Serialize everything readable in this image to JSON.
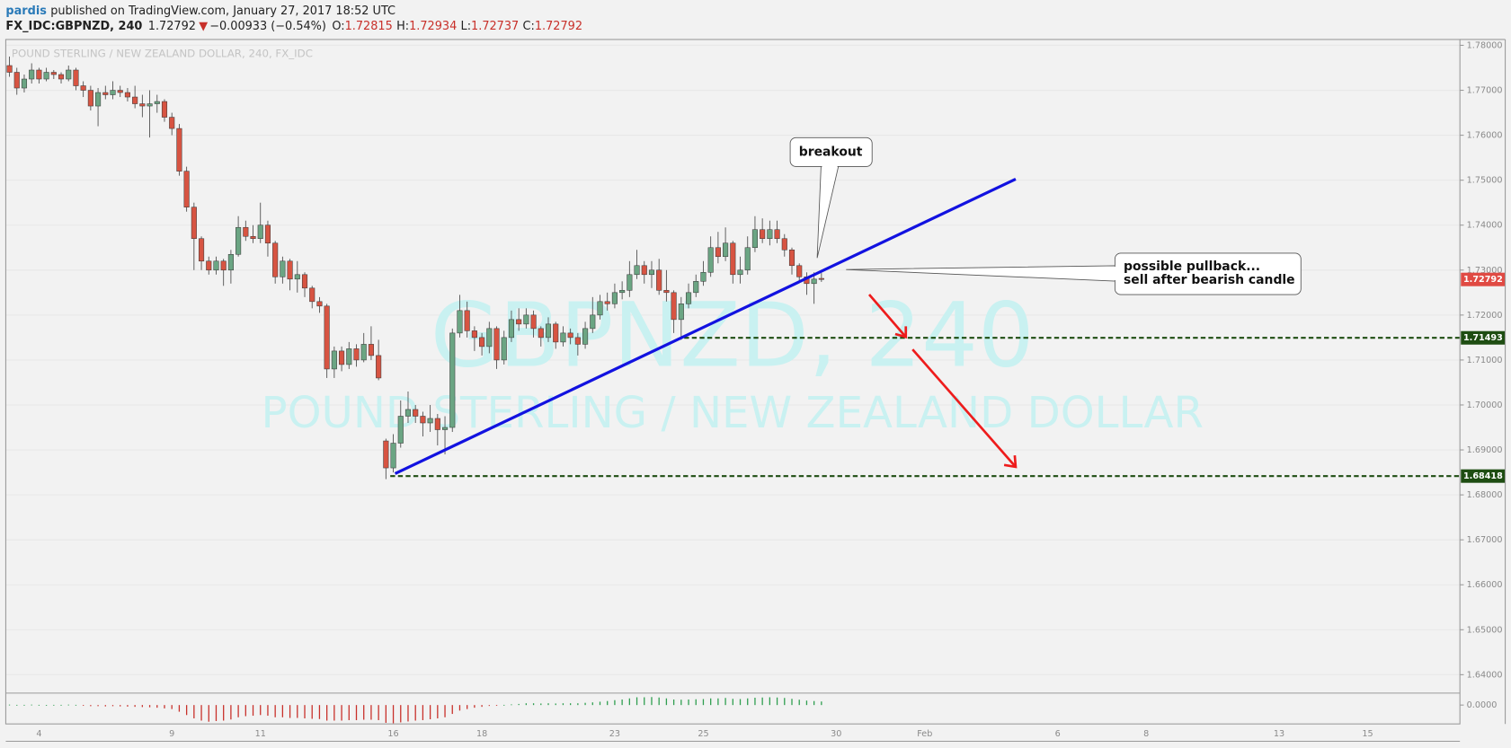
{
  "header": {
    "author": "pardis",
    "published": "published on TradingView.com, January 27, 2017 18:52 UTC",
    "symbol": "FX_IDC:GBPNZD, 240",
    "direction": "▼",
    "change": "−0.00933 (−0.54%)",
    "ohlc_labels": [
      "O:",
      "H:",
      "L:",
      "C:"
    ]
  },
  "chart_data": {
    "type": "candlestick",
    "legend_text": "POUND STERLING / NEW ZEALAND DOLLAR, 240, FX_IDC",
    "watermark": [
      "GBPNZD, 240",
      "POUND STERLING / NEW ZEALAND DOLLAR"
    ],
    "annotations": [
      "breakout",
      "possible pullback...",
      "sell after bearish candle"
    ],
    "up_color": "#6ba583",
    "down_color": "#d75442",
    "grid": true,
    "ylim": [
      1.6359,
      1.7813
    ],
    "yticks": [
      {
        "value": 1.78,
        "label": "1.78000"
      },
      {
        "value": 1.77,
        "label": "1.77000"
      },
      {
        "value": 1.76,
        "label": "1.76000"
      },
      {
        "value": 1.75,
        "label": "1.75000"
      },
      {
        "value": 1.74,
        "label": "1.74000"
      },
      {
        "value": 1.73,
        "label": "1.73000"
      },
      {
        "value": 1.72,
        "label": "1.72000"
      },
      {
        "value": 1.71,
        "label": "1.71000"
      },
      {
        "value": 1.7,
        "label": "1.70000"
      },
      {
        "value": 1.69,
        "label": "1.69000"
      },
      {
        "value": 1.68,
        "label": "1.68000"
      },
      {
        "value": 1.67,
        "label": "1.67000"
      },
      {
        "value": 1.66,
        "label": "1.66000"
      },
      {
        "value": 1.65,
        "label": "1.65000"
      },
      {
        "value": 1.64,
        "label": "1.64000"
      }
    ],
    "levels": [
      1.71493,
      1.68418
    ],
    "level_color": "#1e4d12",
    "last_color": "#e04a43",
    "categories": [
      null,
      null,
      null,
      null,
      "4",
      null,
      null,
      null,
      null,
      null,
      null,
      null,
      null,
      null,
      null,
      null,
      null,
      null,
      null,
      null,
      null,
      null,
      "9",
      null,
      null,
      null,
      null,
      null,
      null,
      null,
      null,
      null,
      null,
      null,
      "11",
      null,
      null,
      null,
      null,
      null,
      null,
      null,
      null,
      null,
      null,
      null,
      null,
      null,
      null,
      null,
      null,
      null,
      "16",
      null,
      null,
      null,
      null,
      null,
      null,
      null,
      null,
      null,
      null,
      null,
      "18",
      null,
      null,
      null,
      null,
      null,
      null,
      null,
      null,
      null,
      null,
      null,
      null,
      null,
      null,
      null,
      null,
      null,
      "23",
      null,
      null,
      null,
      null,
      null,
      null,
      null,
      null,
      null,
      null,
      null,
      "25",
      null,
      null,
      null,
      null,
      null,
      null,
      null,
      null,
      null,
      null,
      null,
      null,
      null,
      null,
      null,
      null,
      null,
      "30",
      null,
      null,
      null,
      null,
      null,
      null,
      null,
      null,
      null,
      null,
      null,
      "Feb",
      null,
      null,
      null,
      null,
      null,
      null,
      null,
      null,
      null,
      null,
      null,
      null,
      null,
      null,
      null,
      null,
      null,
      "6",
      null,
      null,
      null,
      null,
      null,
      null,
      null,
      null,
      null,
      null,
      null,
      "8",
      null,
      null,
      null,
      null,
      null,
      null,
      null,
      null,
      null,
      null,
      null,
      null,
      null,
      null,
      null,
      null,
      null,
      "13",
      null,
      null,
      null,
      null,
      null,
      null,
      null,
      null,
      null,
      null,
      null,
      "15",
      null,
      null,
      null,
      null,
      null,
      null,
      null,
      null,
      null,
      null,
      null,
      null
    ],
    "open": [
      1.7755,
      1.774,
      1.7705,
      1.7725,
      1.7745,
      1.7725,
      1.774,
      1.7735,
      1.7725,
      1.7745,
      1.771,
      1.77,
      1.7665,
      1.7695,
      1.769,
      1.77,
      1.7695,
      1.7685,
      1.767,
      1.7665,
      1.767,
      1.7675,
      1.764,
      1.7615,
      1.752,
      1.744,
      1.737,
      1.732,
      1.73,
      1.732,
      1.73,
      1.7335,
      1.7395,
      1.7375,
      1.737,
      1.74,
      1.736,
      1.7285,
      1.732,
      1.728,
      1.729,
      1.726,
      1.723,
      1.722,
      1.708,
      1.712,
      1.709,
      1.7125,
      1.71,
      1.7135,
      1.711,
      1.692,
      1.686,
      1.6915,
      1.6975,
      1.699,
      1.6975,
      1.696,
      1.697,
      1.6945,
      1.695,
      1.716,
      1.721,
      1.7165,
      1.715,
      1.713,
      1.717,
      1.71,
      1.715,
      1.719,
      1.718,
      1.72,
      1.717,
      1.715,
      1.718,
      1.714,
      1.716,
      1.715,
      1.7135,
      1.717,
      1.72,
      1.723,
      1.7225,
      1.725,
      1.7255,
      1.729,
      1.731,
      1.729,
      1.73,
      1.7255,
      1.725,
      1.719,
      1.7225,
      1.725,
      1.7275,
      1.7295,
      1.735,
      1.733,
      1.736,
      1.729,
      1.73,
      1.735,
      1.739,
      1.737,
      1.739,
      1.737,
      1.7345,
      1.731,
      1.7285,
      1.727,
      1.72815,
      null,
      null,
      null,
      null,
      null,
      null,
      null,
      null,
      null,
      null,
      null,
      null,
      null,
      null,
      null,
      null,
      null,
      null,
      null,
      null,
      null,
      null,
      null,
      null,
      null,
      null,
      null,
      null,
      null,
      null,
      null,
      null,
      null,
      null,
      null,
      null,
      null,
      null,
      null,
      null,
      null,
      null,
      null,
      null,
      null,
      null,
      null,
      null,
      null,
      null,
      null,
      null,
      null,
      null,
      null,
      null,
      null,
      null,
      null,
      null,
      null,
      null,
      null,
      null,
      null,
      null,
      null,
      null,
      null,
      null,
      null,
      null,
      null,
      null,
      null,
      null,
      null,
      null,
      null,
      null,
      null,
      null,
      null,
      null,
      null,
      null
    ],
    "high": [
      1.7775,
      1.775,
      1.7735,
      1.776,
      1.775,
      1.775,
      1.7745,
      1.774,
      1.7755,
      1.775,
      1.772,
      1.771,
      1.7705,
      1.771,
      1.772,
      1.771,
      1.7705,
      1.771,
      1.769,
      1.77,
      1.769,
      1.768,
      1.765,
      1.7625,
      1.753,
      1.745,
      1.7375,
      1.733,
      1.733,
      1.7325,
      1.7345,
      1.742,
      1.741,
      1.74,
      1.745,
      1.741,
      1.7365,
      1.733,
      1.7325,
      1.732,
      1.7295,
      1.7265,
      1.724,
      1.7225,
      1.713,
      1.713,
      1.714,
      1.7135,
      1.716,
      1.7175,
      1.7145,
      1.6925,
      1.6935,
      1.701,
      1.703,
      1.7,
      1.6985,
      1.7,
      1.698,
      1.6975,
      1.717,
      1.7245,
      1.723,
      1.7175,
      1.716,
      1.7185,
      1.7175,
      1.7165,
      1.721,
      1.7215,
      1.7215,
      1.721,
      1.7175,
      1.7195,
      1.7185,
      1.7175,
      1.717,
      1.716,
      1.7185,
      1.724,
      1.7245,
      1.725,
      1.727,
      1.7275,
      1.732,
      1.7345,
      1.732,
      1.732,
      1.7325,
      1.73,
      1.7255,
      1.724,
      1.727,
      1.729,
      1.732,
      1.7375,
      1.7385,
      1.7395,
      1.7365,
      1.733,
      1.7375,
      1.742,
      1.7415,
      1.741,
      1.741,
      1.738,
      1.735,
      1.7315,
      1.7295,
      1.7295,
      1.72934,
      null,
      null,
      null,
      null,
      null,
      null,
      null,
      null,
      null,
      null,
      null,
      null,
      null,
      null,
      null,
      null,
      null,
      null,
      null,
      null,
      null,
      null,
      null,
      null,
      null,
      null,
      null,
      null,
      null,
      null,
      null,
      null,
      null,
      null,
      null,
      null,
      null,
      null,
      null,
      null,
      null,
      null,
      null,
      null,
      null,
      null,
      null,
      null,
      null,
      null,
      null,
      null,
      null,
      null,
      null,
      null,
      null,
      null,
      null,
      null,
      null,
      null,
      null,
      null,
      null,
      null,
      null,
      null,
      null,
      null,
      null,
      null,
      null,
      null,
      null,
      null,
      null,
      null,
      null,
      null,
      null,
      null,
      null,
      null,
      null,
      null
    ],
    "low": [
      1.773,
      1.769,
      1.7695,
      1.7715,
      1.7715,
      1.772,
      1.7725,
      1.7715,
      1.772,
      1.77,
      1.7685,
      1.7655,
      1.762,
      1.768,
      1.768,
      1.7685,
      1.7675,
      1.766,
      1.764,
      1.7595,
      1.765,
      1.763,
      1.76,
      1.751,
      1.743,
      1.73,
      1.73,
      1.729,
      1.729,
      1.7265,
      1.727,
      1.733,
      1.7365,
      1.736,
      1.736,
      1.733,
      1.727,
      1.727,
      1.7255,
      1.725,
      1.724,
      1.7215,
      1.7205,
      1.706,
      1.706,
      1.7075,
      1.708,
      1.7085,
      1.7095,
      1.71,
      1.7055,
      1.6835,
      1.685,
      1.6905,
      1.696,
      1.696,
      1.693,
      1.694,
      1.691,
      1.689,
      1.694,
      1.715,
      1.715,
      1.712,
      1.711,
      1.7115,
      1.708,
      1.709,
      1.714,
      1.7165,
      1.717,
      1.715,
      1.713,
      1.714,
      1.7125,
      1.713,
      1.7135,
      1.711,
      1.7125,
      1.716,
      1.719,
      1.721,
      1.7215,
      1.7235,
      1.724,
      1.728,
      1.727,
      1.726,
      1.7245,
      1.723,
      1.716,
      1.7145,
      1.7215,
      1.724,
      1.7265,
      1.7285,
      1.7315,
      1.732,
      1.727,
      1.727,
      1.729,
      1.734,
      1.736,
      1.7355,
      1.736,
      1.733,
      1.729,
      1.7275,
      1.7245,
      1.7225,
      1.72737,
      null,
      null,
      null,
      null,
      null,
      null,
      null,
      null,
      null,
      null,
      null,
      null,
      null,
      null,
      null,
      null,
      null,
      null,
      null,
      null,
      null,
      null,
      null,
      null,
      null,
      null,
      null,
      null,
      null,
      null,
      null,
      null,
      null,
      null,
      null,
      null,
      null,
      null,
      null,
      null,
      null,
      null,
      null,
      null,
      null,
      null,
      null,
      null,
      null,
      null,
      null,
      null,
      null,
      null,
      null,
      null,
      null,
      null,
      null,
      null,
      null,
      null,
      null,
      null,
      null,
      null,
      null,
      null,
      null,
      null,
      null,
      null,
      null,
      null,
      null,
      null,
      null,
      null,
      null,
      null,
      null,
      null,
      null,
      null,
      null,
      null
    ],
    "close": [
      1.774,
      1.7705,
      1.7725,
      1.7745,
      1.7725,
      1.774,
      1.7735,
      1.7725,
      1.7745,
      1.771,
      1.77,
      1.7665,
      1.7695,
      1.769,
      1.77,
      1.7695,
      1.7685,
      1.767,
      1.7665,
      1.767,
      1.7675,
      1.764,
      1.7615,
      1.752,
      1.744,
      1.737,
      1.732,
      1.73,
      1.732,
      1.73,
      1.7335,
      1.7395,
      1.7375,
      1.737,
      1.74,
      1.736,
      1.7285,
      1.732,
      1.728,
      1.729,
      1.726,
      1.723,
      1.722,
      1.708,
      1.712,
      1.709,
      1.7125,
      1.71,
      1.7135,
      1.711,
      1.706,
      1.686,
      1.6915,
      1.6975,
      1.699,
      1.6975,
      1.696,
      1.697,
      1.6945,
      1.695,
      1.716,
      1.721,
      1.7165,
      1.715,
      1.713,
      1.717,
      1.71,
      1.715,
      1.719,
      1.718,
      1.72,
      1.717,
      1.715,
      1.718,
      1.714,
      1.716,
      1.715,
      1.7135,
      1.717,
      1.72,
      1.723,
      1.7225,
      1.725,
      1.7255,
      1.729,
      1.731,
      1.729,
      1.73,
      1.7255,
      1.725,
      1.719,
      1.7225,
      1.725,
      1.7275,
      1.7295,
      1.735,
      1.733,
      1.736,
      1.729,
      1.73,
      1.735,
      1.739,
      1.737,
      1.739,
      1.737,
      1.7345,
      1.731,
      1.7285,
      1.727,
      1.728,
      1.72792,
      null,
      null,
      null,
      null,
      null,
      null,
      null,
      null,
      null,
      null,
      null,
      null,
      null,
      null,
      null,
      null,
      null,
      null,
      null,
      null,
      null,
      null,
      null,
      null,
      null,
      null,
      null,
      null,
      null,
      null,
      null,
      null,
      null,
      null,
      null,
      null,
      null,
      null,
      null,
      null,
      null,
      null,
      null,
      null,
      null,
      null,
      null,
      null,
      null,
      null,
      null,
      null,
      null,
      null,
      null,
      null,
      null,
      null,
      null,
      null,
      null,
      null,
      null,
      null,
      null,
      null,
      null,
      null,
      null,
      null,
      null,
      null,
      null,
      null,
      null,
      null,
      null,
      null,
      null,
      null,
      null,
      null,
      null,
      null,
      null,
      null
    ],
    "oscillator": [
      0.0002,
      0.0001,
      0.0001,
      0.0002,
      0.0001,
      0,
      0.0001,
      0.0001,
      0.0002,
      0.0001,
      -0.0003,
      -0.0005,
      -0.0005,
      -0.0006,
      -0.0005,
      -0.0006,
      -0.0007,
      -0.0008,
      -0.0009,
      -0.001,
      -0.0012,
      -0.0015,
      -0.0018,
      -0.003,
      -0.0045,
      -0.006,
      -0.007,
      -0.0075,
      -0.0072,
      -0.007,
      -0.0065,
      -0.0055,
      -0.005,
      -0.0048,
      -0.0045,
      -0.0048,
      -0.0055,
      -0.0055,
      -0.0058,
      -0.0058,
      -0.006,
      -0.0062,
      -0.0063,
      -0.007,
      -0.007,
      -0.007,
      -0.0068,
      -0.0068,
      -0.0066,
      -0.0066,
      -0.0068,
      -0.008,
      -0.0082,
      -0.0078,
      -0.0074,
      -0.007,
      -0.0068,
      -0.0064,
      -0.006,
      -0.0055,
      -0.004,
      -0.0025,
      -0.0018,
      -0.0012,
      -0.0008,
      -0.0004,
      -0.0002,
      0.0001,
      0.0003,
      0.0005,
      0.0008,
      0.0008,
      0.0007,
      0.0008,
      0.0007,
      0.0008,
      0.0008,
      0.0008,
      0.001,
      0.0012,
      0.0015,
      0.0018,
      0.0022,
      0.0025,
      0.003,
      0.0035,
      0.0035,
      0.0036,
      0.0034,
      0.003,
      0.0025,
      0.0024,
      0.0025,
      0.0026,
      0.0027,
      0.003,
      0.003,
      0.0032,
      0.0028,
      0.0027,
      0.003,
      0.0033,
      0.0034,
      0.0035,
      0.0034,
      0.0032,
      0.0028,
      0.0024,
      0.002,
      0.0018,
      0.0016,
      null,
      null,
      null,
      null,
      null,
      null,
      null,
      null,
      null,
      null,
      null,
      null,
      null,
      null,
      null,
      null,
      null,
      null,
      null,
      null,
      null,
      null,
      null,
      null,
      null,
      null,
      null,
      null,
      null,
      null,
      null,
      null,
      null,
      null,
      null,
      null,
      null,
      null,
      null,
      null,
      null,
      null,
      null,
      null,
      null,
      null,
      null,
      null,
      null,
      null,
      null,
      null,
      null,
      null,
      null,
      null,
      null,
      null,
      null,
      null,
      null,
      null,
      null,
      null,
      null,
      null,
      null,
      null,
      null,
      null,
      null,
      null,
      null,
      null,
      null,
      null,
      null,
      null,
      null,
      null,
      null,
      null,
      null,
      null,
      null,
      null
    ],
    "oscillator_colors": {
      "positive": "#2e9e4f",
      "negative": "#c8302a"
    },
    "oscillator_ylim": [
      -0.0085,
      0.0045
    ],
    "oscillator_yticks": [
      {
        "value": 0,
        "label": "0.0000"
      }
    ]
  }
}
